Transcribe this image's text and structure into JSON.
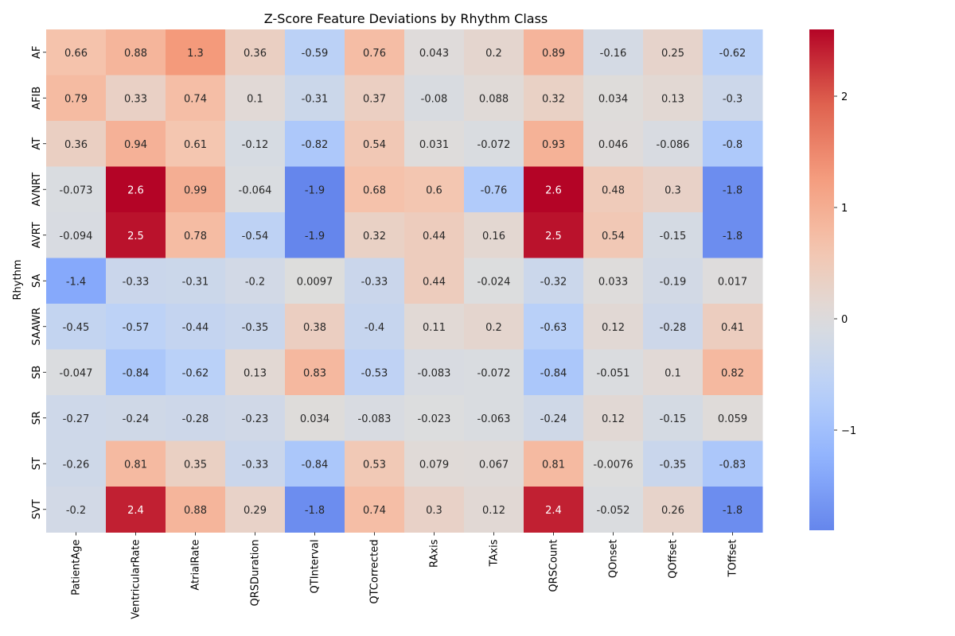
{
  "chart_data": {
    "type": "heatmap",
    "title": "Z-Score Feature Deviations by Rhythm Class",
    "xlabel": "",
    "ylabel": "Rhythm",
    "colormap": "coolwarm",
    "vmin": -1.9,
    "vmax": 2.6,
    "center": 0,
    "colorbar_ticks": [
      -1,
      0,
      1,
      2
    ],
    "colorbar_tick_labels": [
      "−1",
      "0",
      "1",
      "2"
    ],
    "columns": [
      "PatientAge",
      "VentricularRate",
      "AtrialRate",
      "QRSDuration",
      "QTInterval",
      "QTCorrected",
      "RAxis",
      "TAxis",
      "QRSCount",
      "QOnset",
      "QOffset",
      "TOffset"
    ],
    "rows": [
      "AF",
      "AFIB",
      "AT",
      "AVNRT",
      "AVRT",
      "SA",
      "SAAWR",
      "SB",
      "SR",
      "ST",
      "SVT"
    ],
    "values": [
      [
        0.66,
        0.88,
        1.3,
        0.36,
        -0.59,
        0.76,
        0.043,
        0.2,
        0.89,
        -0.16,
        0.25,
        -0.62
      ],
      [
        0.79,
        0.33,
        0.74,
        0.1,
        -0.31,
        0.37,
        -0.08,
        0.088,
        0.32,
        0.034,
        0.13,
        -0.3
      ],
      [
        0.36,
        0.94,
        0.61,
        -0.12,
        -0.82,
        0.54,
        0.031,
        -0.072,
        0.93,
        0.046,
        -0.086,
        -0.8
      ],
      [
        -0.073,
        2.6,
        0.99,
        -0.064,
        -1.9,
        0.68,
        0.6,
        -0.76,
        2.6,
        0.48,
        0.3,
        -1.8
      ],
      [
        -0.094,
        2.5,
        0.78,
        -0.54,
        -1.9,
        0.32,
        0.44,
        0.16,
        2.5,
        0.54,
        -0.15,
        -1.8
      ],
      [
        -1.4,
        -0.33,
        -0.31,
        -0.2,
        0.0097,
        -0.33,
        0.44,
        -0.024,
        -0.32,
        0.033,
        -0.19,
        0.017
      ],
      [
        -0.45,
        -0.57,
        -0.44,
        -0.35,
        0.38,
        -0.4,
        0.11,
        0.2,
        -0.63,
        0.12,
        -0.28,
        0.41
      ],
      [
        -0.047,
        -0.84,
        -0.62,
        0.13,
        0.83,
        -0.53,
        -0.083,
        -0.072,
        -0.84,
        -0.051,
        0.1,
        0.82
      ],
      [
        -0.27,
        -0.24,
        -0.28,
        -0.23,
        0.034,
        -0.083,
        -0.023,
        -0.063,
        -0.24,
        0.12,
        -0.15,
        0.059
      ],
      [
        -0.26,
        0.81,
        0.35,
        -0.33,
        -0.84,
        0.53,
        0.079,
        0.067,
        0.81,
        -0.0076,
        -0.35,
        -0.83
      ],
      [
        -0.2,
        2.4,
        0.88,
        0.29,
        -1.8,
        0.74,
        0.3,
        0.12,
        2.4,
        -0.052,
        0.26,
        -1.8
      ]
    ],
    "labels": [
      [
        "0.66",
        "0.88",
        "1.3",
        "0.36",
        "-0.59",
        "0.76",
        "0.043",
        "0.2",
        "0.89",
        "-0.16",
        "0.25",
        "-0.62"
      ],
      [
        "0.79",
        "0.33",
        "0.74",
        "0.1",
        "-0.31",
        "0.37",
        "-0.08",
        "0.088",
        "0.32",
        "0.034",
        "0.13",
        "-0.3"
      ],
      [
        "0.36",
        "0.94",
        "0.61",
        "-0.12",
        "-0.82",
        "0.54",
        "0.031",
        "-0.072",
        "0.93",
        "0.046",
        "-0.086",
        "-0.8"
      ],
      [
        "-0.073",
        "2.6",
        "0.99",
        "-0.064",
        "-1.9",
        "0.68",
        "0.6",
        "-0.76",
        "2.6",
        "0.48",
        "0.3",
        "-1.8"
      ],
      [
        "-0.094",
        "2.5",
        "0.78",
        "-0.54",
        "-1.9",
        "0.32",
        "0.44",
        "0.16",
        "2.5",
        "0.54",
        "-0.15",
        "-1.8"
      ],
      [
        "-1.4",
        "-0.33",
        "-0.31",
        "-0.2",
        "0.0097",
        "-0.33",
        "0.44",
        "-0.024",
        "-0.32",
        "0.033",
        "-0.19",
        "0.017"
      ],
      [
        "-0.45",
        "-0.57",
        "-0.44",
        "-0.35",
        "0.38",
        "-0.4",
        "0.11",
        "0.2",
        "-0.63",
        "0.12",
        "-0.28",
        "0.41"
      ],
      [
        "-0.047",
        "-0.84",
        "-0.62",
        "0.13",
        "0.83",
        "-0.53",
        "-0.083",
        "-0.072",
        "-0.84",
        "-0.051",
        "0.1",
        "0.82"
      ],
      [
        "-0.27",
        "-0.24",
        "-0.28",
        "-0.23",
        "0.034",
        "-0.083",
        "-0.023",
        "-0.063",
        "-0.24",
        "0.12",
        "-0.15",
        "0.059"
      ],
      [
        "-0.26",
        "0.81",
        "0.35",
        "-0.33",
        "-0.84",
        "0.53",
        "0.079",
        "0.067",
        "0.81",
        "-0.0076",
        "-0.35",
        "-0.83"
      ],
      [
        "-0.2",
        "2.4",
        "0.88",
        "0.29",
        "-1.8",
        "0.74",
        "0.3",
        "0.12",
        "2.4",
        "-0.052",
        "0.26",
        "-1.8"
      ]
    ]
  }
}
